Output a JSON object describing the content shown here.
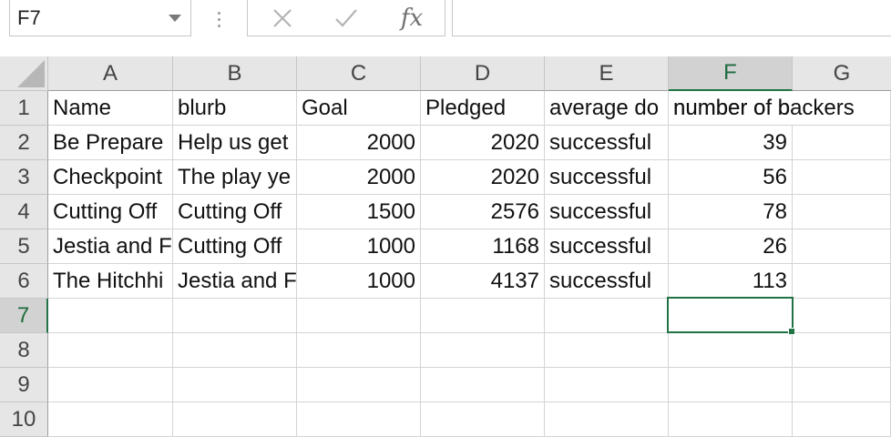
{
  "name_box": {
    "value": "F7"
  },
  "formula_bar": {
    "cancel_icon": "close-icon",
    "enter_icon": "checkmark-icon",
    "function_label": "fx",
    "content": ""
  },
  "columns": [
    {
      "label": "A"
    },
    {
      "label": "B"
    },
    {
      "label": "C"
    },
    {
      "label": "D"
    },
    {
      "label": "E"
    },
    {
      "label": "F"
    },
    {
      "label": "G"
    }
  ],
  "rows": [
    "1",
    "2",
    "3",
    "4",
    "5",
    "6",
    "7",
    "8",
    "9",
    "10"
  ],
  "header_row": [
    "Name",
    "blurb",
    "Goal",
    "Pledged",
    "average do",
    "number of backers",
    ""
  ],
  "data_rows": [
    [
      "Be Prepare",
      "Help us get",
      "2000",
      "2020",
      "successful",
      "39"
    ],
    [
      "Checkpoint",
      "The play ye",
      "2000",
      "2020",
      "successful",
      "56"
    ],
    [
      "Cutting Off",
      "Cutting Off",
      "1500",
      "2576",
      "successful",
      "78"
    ],
    [
      "Jestia and F",
      "Cutting Off",
      "1000",
      "1168",
      "successful",
      "26"
    ],
    [
      "The Hitchhi",
      "Jestia and F",
      "1000",
      "4137",
      "successful",
      "113"
    ]
  ],
  "active_cell": "F7",
  "colors": {
    "accent": "#217346",
    "header_bg": "#e6e6e6",
    "selected_header_bg": "#d2d2d2"
  }
}
